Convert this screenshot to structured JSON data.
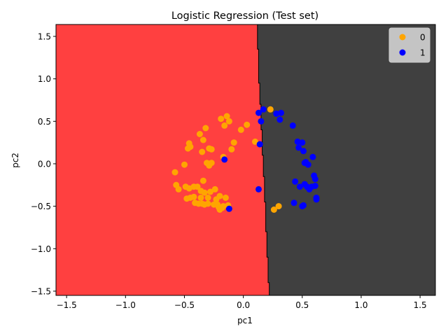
{
  "chart_data": {
    "type": "scatter",
    "title": "Logistic Regression (Test set)",
    "xlabel": "pc1",
    "ylabel": "pc2",
    "xlim": [
      -1.59,
      1.63
    ],
    "ylim": [
      -1.55,
      1.64
    ],
    "xticks": [
      -1.5,
      -1.0,
      -0.5,
      0.0,
      0.5,
      1.0,
      1.5
    ],
    "xtick_labels": [
      "−1.5",
      "−1.0",
      "−0.5",
      "0.0",
      "0.5",
      "1.0",
      "1.5"
    ],
    "yticks": [
      -1.5,
      -1.0,
      -0.5,
      0.0,
      0.5,
      1.0,
      1.5
    ],
    "ytick_labels": [
      "−1.5",
      "−1.0",
      "−0.5",
      "0.0",
      "0.5",
      "1.0",
      "1.5"
    ],
    "grid": false,
    "legend_position": "top-right",
    "decision_regions": {
      "left_color": "#ff4040",
      "right_color": "#404040",
      "boundary": [
        [
          0.12,
          1.64
        ],
        [
          0.12,
          1.35
        ],
        [
          0.13,
          1.35
        ],
        [
          0.13,
          0.95
        ],
        [
          0.14,
          0.95
        ],
        [
          0.14,
          0.7
        ],
        [
          0.15,
          0.7
        ],
        [
          0.15,
          0.4
        ],
        [
          0.16,
          0.4
        ],
        [
          0.16,
          0.1
        ],
        [
          0.17,
          0.1
        ],
        [
          0.17,
          -0.15
        ],
        [
          0.18,
          -0.15
        ],
        [
          0.18,
          -0.45
        ],
        [
          0.19,
          -0.45
        ],
        [
          0.19,
          -0.8
        ],
        [
          0.2,
          -0.8
        ],
        [
          0.2,
          -1.1
        ],
        [
          0.21,
          -1.1
        ],
        [
          0.21,
          -1.4
        ],
        [
          0.22,
          -1.4
        ],
        [
          0.22,
          -1.55
        ]
      ]
    },
    "series": [
      {
        "name": "0",
        "color": "#ffa500",
        "points": [
          [
            -0.58,
            -0.1
          ],
          [
            -0.57,
            -0.25
          ],
          [
            -0.55,
            -0.3
          ],
          [
            -0.5,
            -0.01
          ],
          [
            -0.49,
            -0.27
          ],
          [
            -0.48,
            -0.41
          ],
          [
            -0.47,
            0.18
          ],
          [
            -0.46,
            -0.29
          ],
          [
            -0.46,
            0.24
          ],
          [
            -0.45,
            0.2
          ],
          [
            -0.45,
            -0.4
          ],
          [
            -0.42,
            -0.27
          ],
          [
            -0.42,
            -0.39
          ],
          [
            -0.41,
            -0.46
          ],
          [
            -0.39,
            -0.27
          ],
          [
            -0.38,
            -0.47
          ],
          [
            -0.37,
            0.35
          ],
          [
            -0.36,
            -0.32
          ],
          [
            -0.36,
            -0.4
          ],
          [
            -0.35,
            -0.47
          ],
          [
            -0.35,
            0.14
          ],
          [
            -0.34,
            0.28
          ],
          [
            -0.34,
            -0.2
          ],
          [
            -0.33,
            -0.34
          ],
          [
            -0.33,
            -0.48
          ],
          [
            -0.32,
            0.42
          ],
          [
            -0.31,
            0.01
          ],
          [
            -0.3,
            -0.4
          ],
          [
            -0.3,
            -0.47
          ],
          [
            -0.29,
            0.18
          ],
          [
            -0.29,
            -0.02
          ],
          [
            -0.28,
            -0.33
          ],
          [
            -0.27,
            0.01
          ],
          [
            -0.27,
            0.17
          ],
          [
            -0.25,
            -0.48
          ],
          [
            -0.24,
            -0.3
          ],
          [
            -0.23,
            -0.42
          ],
          [
            -0.22,
            -0.48
          ],
          [
            -0.21,
            -0.51
          ],
          [
            -0.2,
            -0.38
          ],
          [
            -0.2,
            -0.54
          ],
          [
            -0.18,
            -0.52
          ],
          [
            -0.17,
            -0.5
          ],
          [
            -0.16,
            0.45
          ],
          [
            -0.15,
            -0.4
          ],
          [
            -0.17,
            0.08
          ],
          [
            -0.13,
            -0.49
          ],
          [
            -0.12,
            0.5
          ],
          [
            -0.1,
            0.17
          ],
          [
            -0.08,
            0.25
          ],
          [
            -0.02,
            0.4
          ],
          [
            0.03,
            0.46
          ],
          [
            0.1,
            0.26
          ],
          [
            0.23,
            0.64
          ],
          [
            0.26,
            -0.54
          ],
          [
            0.3,
            -0.5
          ],
          [
            -0.19,
            0.53
          ],
          [
            -0.14,
            0.56
          ]
        ]
      },
      {
        "name": "1",
        "color": "#0000ff",
        "points": [
          [
            0.13,
            0.6
          ],
          [
            0.14,
            0.23
          ],
          [
            0.15,
            0.5
          ],
          [
            0.17,
            0.64
          ],
          [
            0.13,
            -0.3
          ],
          [
            0.28,
            0.59
          ],
          [
            0.31,
            0.52
          ],
          [
            0.32,
            0.6
          ],
          [
            0.42,
            0.45
          ],
          [
            0.44,
            -0.21
          ],
          [
            0.46,
            0.26
          ],
          [
            0.47,
            0.19
          ],
          [
            0.48,
            -0.27
          ],
          [
            0.5,
            0.25
          ],
          [
            0.51,
            -0.49
          ],
          [
            0.51,
            0.15
          ],
          [
            0.52,
            -0.24
          ],
          [
            0.53,
            0.02
          ],
          [
            0.54,
            -0.27
          ],
          [
            0.55,
            -0.01
          ],
          [
            0.56,
            -0.3
          ],
          [
            0.58,
            -0.27
          ],
          [
            0.59,
            0.08
          ],
          [
            0.6,
            -0.14
          ],
          [
            0.61,
            -0.26
          ],
          [
            0.61,
            -0.18
          ],
          [
            0.62,
            -0.4
          ],
          [
            0.62,
            -0.42
          ],
          [
            0.43,
            -0.46
          ],
          [
            0.5,
            -0.5
          ],
          [
            0.52,
            0.01
          ],
          [
            -0.16,
            0.05
          ],
          [
            -0.12,
            -0.53
          ]
        ]
      }
    ]
  }
}
